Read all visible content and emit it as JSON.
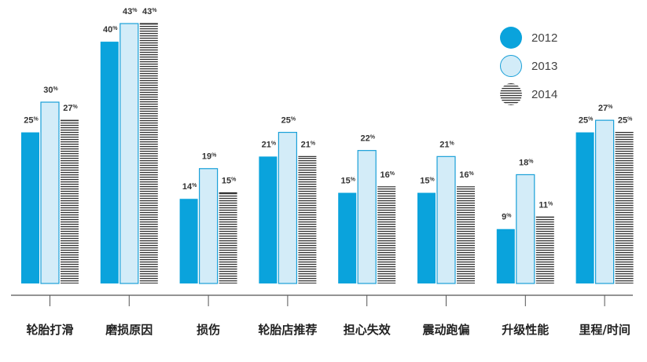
{
  "chart_data": {
    "type": "bar",
    "categories": [
      "轮胎打滑",
      "磨损原因",
      "损伤",
      "轮胎店推荐",
      "担心失效",
      "震动跑偏",
      "升级性能",
      "里程/时间"
    ],
    "series": [
      {
        "name": "2012",
        "values": [
          25,
          40,
          14,
          21,
          15,
          15,
          9,
          25
        ],
        "labels": [
          "25",
          "40",
          "14",
          "21",
          "15",
          "15",
          "9",
          "25"
        ]
      },
      {
        "name": "2013",
        "values": [
          30,
          43,
          19,
          25,
          22,
          21,
          18,
          27
        ],
        "labels": [
          "30",
          "43",
          "19",
          "25",
          "22",
          "21",
          "18",
          "27"
        ]
      },
      {
        "name": "2014",
        "values": [
          27,
          43,
          15,
          21,
          16,
          16,
          11,
          25
        ],
        "labels": [
          "27",
          "43",
          "15",
          "21",
          "16",
          "16",
          "11",
          "25"
        ]
      }
    ],
    "unit_suffix": "%",
    "ylim": [
      0,
      43
    ],
    "grid": false,
    "legend_position": "top-right",
    "colors": {
      "s2012_fill": "#0aa3dc",
      "s2013_fill": "#d3ecf8",
      "s2013_stroke": "#1aa0d8",
      "s2014_stripe": "#333333",
      "axis": "#555555",
      "label": "#333333"
    }
  }
}
